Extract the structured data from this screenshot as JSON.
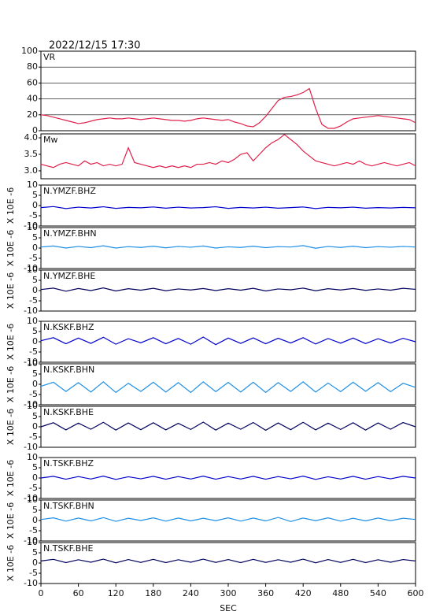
{
  "chart_data": [
    {
      "type": "line",
      "title": "2022/12/15 17:30",
      "grid": true,
      "x": [
        0,
        10,
        20,
        30,
        40,
        50,
        60,
        70,
        80,
        90,
        100,
        110,
        120,
        130,
        140,
        150,
        160,
        170,
        180,
        190,
        200,
        210,
        220,
        230,
        240,
        250,
        260,
        270,
        280,
        290,
        300,
        310,
        320,
        330,
        340,
        350,
        360,
        370,
        380,
        390,
        400,
        410,
        420,
        430,
        440,
        450,
        460,
        470,
        480,
        490,
        500,
        510,
        520,
        530,
        540,
        550,
        560,
        570,
        580,
        590,
        600
      ],
      "xlim": [
        0,
        600
      ],
      "ylim": [
        0,
        100
      ],
      "yticks": [
        0,
        20,
        40,
        60,
        80,
        100
      ],
      "series": [
        {
          "name": "VR",
          "color": "#e0204a",
          "values": [
            20,
            19,
            17,
            15,
            13,
            11,
            9,
            10,
            12,
            14,
            15,
            16,
            15,
            15,
            16,
            15,
            14,
            15,
            16,
            15,
            14,
            13,
            13,
            12,
            13,
            15,
            16,
            15,
            14,
            13,
            14,
            11,
            9,
            6,
            5,
            10,
            18,
            28,
            38,
            42,
            43,
            45,
            48,
            53,
            28,
            8,
            3,
            3,
            6,
            11,
            15,
            16,
            17,
            18,
            19,
            18,
            17,
            16,
            15,
            14,
            10
          ]
        }
      ]
    },
    {
      "type": "line",
      "x": [
        0,
        10,
        20,
        30,
        40,
        50,
        60,
        70,
        80,
        90,
        100,
        110,
        120,
        130,
        140,
        150,
        160,
        170,
        180,
        190,
        200,
        210,
        220,
        230,
        240,
        250,
        260,
        270,
        280,
        290,
        300,
        310,
        320,
        330,
        340,
        350,
        360,
        370,
        380,
        390,
        400,
        410,
        420,
        430,
        440,
        450,
        460,
        470,
        480,
        490,
        500,
        510,
        520,
        530,
        540,
        550,
        560,
        570,
        580,
        590,
        600
      ],
      "xlim": [
        0,
        600
      ],
      "ylim": [
        2.76,
        4.12
      ],
      "yticks": [
        {
          "value": 3,
          "label": "3.0"
        },
        3.5,
        {
          "value": 4,
          "label": "4.0"
        }
      ],
      "series": [
        {
          "name": "Mw",
          "color": "#e0204a",
          "values": [
            3.2,
            3.15,
            3.1,
            3.2,
            3.25,
            3.2,
            3.15,
            3.3,
            3.2,
            3.25,
            3.15,
            3.2,
            3.15,
            3.2,
            3.7,
            3.25,
            3.2,
            3.15,
            3.1,
            3.15,
            3.1,
            3.15,
            3.1,
            3.15,
            3.1,
            3.2,
            3.2,
            3.25,
            3.2,
            3.3,
            3.25,
            3.35,
            3.5,
            3.55,
            3.3,
            3.5,
            3.7,
            3.85,
            3.95,
            4.1,
            3.95,
            3.8,
            3.6,
            3.45,
            3.3,
            3.25,
            3.2,
            3.15,
            3.2,
            3.25,
            3.2,
            3.3,
            3.2,
            3.15,
            3.2,
            3.25,
            3.2,
            3.15,
            3.2,
            3.25,
            3.15
          ]
        }
      ]
    },
    {
      "type": "line",
      "ylabel": "X 10E -6",
      "x": [
        0,
        20,
        40,
        60,
        80,
        100,
        120,
        140,
        160,
        180,
        200,
        220,
        240,
        260,
        280,
        300,
        320,
        340,
        360,
        380,
        400,
        420,
        440,
        460,
        480,
        500,
        520,
        540,
        560,
        580,
        600
      ],
      "xlim": [
        0,
        600
      ],
      "ylim": [
        -10,
        10
      ],
      "yticks": [
        -10,
        -5,
        0,
        5,
        10
      ],
      "series": [
        {
          "name": "N.YMZF.BHZ",
          "color": "#0000cc",
          "values": [
            -1,
            -0.5,
            -1.5,
            -0.8,
            -1.2,
            -0.6,
            -1.4,
            -0.9,
            -1.1,
            -0.7,
            -1.3,
            -0.8,
            -1.2,
            -1,
            -0.6,
            -1.4,
            -0.9,
            -1.2,
            -0.8,
            -1.3,
            -1,
            -0.7,
            -1.5,
            -0.9,
            -1.1,
            -0.8,
            -1.3,
            -1,
            -1.2,
            -0.9,
            -1.1
          ]
        }
      ]
    },
    {
      "type": "line",
      "ylabel": "X 10E -6",
      "x": [
        0,
        20,
        40,
        60,
        80,
        100,
        120,
        140,
        160,
        180,
        200,
        220,
        240,
        260,
        280,
        300,
        320,
        340,
        360,
        380,
        400,
        420,
        440,
        460,
        480,
        500,
        520,
        540,
        560,
        580,
        600
      ],
      "xlim": [
        0,
        600
      ],
      "ylim": [
        -10,
        10
      ],
      "yticks": [
        -10,
        -5,
        0,
        5,
        10
      ],
      "series": [
        {
          "name": "N.YMZF.BHN",
          "color": "#1e8fe6",
          "values": [
            0.5,
            1,
            0,
            0.8,
            0.2,
            1.1,
            0,
            0.7,
            0.3,
            0.9,
            0.1,
            0.8,
            0.4,
            1,
            0,
            0.6,
            0.3,
            0.9,
            0.2,
            0.7,
            0.5,
            1.2,
            -0.1,
            0.8,
            0.3,
            0.9,
            0.2,
            0.7,
            0.4,
            0.8,
            0.5
          ]
        }
      ]
    },
    {
      "type": "line",
      "ylabel": "X 10E -6",
      "x": [
        0,
        20,
        40,
        60,
        80,
        100,
        120,
        140,
        160,
        180,
        200,
        220,
        240,
        260,
        280,
        300,
        320,
        340,
        360,
        380,
        400,
        420,
        440,
        460,
        480,
        500,
        520,
        540,
        560,
        580,
        600
      ],
      "xlim": [
        0,
        600
      ],
      "ylim": [
        -10,
        10
      ],
      "yticks": [
        -10,
        -5,
        0,
        5,
        10
      ],
      "series": [
        {
          "name": "N.YMZF.BHE",
          "color": "#00005e",
          "values": [
            0.5,
            1.2,
            -0.3,
            1,
            0,
            1.3,
            -0.2,
            0.9,
            0.2,
            1.1,
            -0.1,
            0.8,
            0.3,
            1,
            0,
            0.9,
            0.2,
            1.1,
            -0.2,
            0.8,
            0.4,
            1.2,
            -0.1,
            0.9,
            0.3,
            1,
            0.1,
            0.8,
            0.2,
            1.1,
            0.6
          ]
        }
      ]
    },
    {
      "type": "line",
      "ylabel": "X 10E -6",
      "x": [
        0,
        20,
        40,
        60,
        80,
        100,
        120,
        140,
        160,
        180,
        200,
        220,
        240,
        260,
        280,
        300,
        320,
        340,
        360,
        380,
        400,
        420,
        440,
        460,
        480,
        500,
        520,
        540,
        560,
        580,
        600
      ],
      "xlim": [
        0,
        600
      ],
      "ylim": [
        -10,
        10
      ],
      "yticks": [
        -10,
        -5,
        0,
        5,
        10
      ],
      "series": [
        {
          "name": "N.KSKF.BHZ",
          "color": "#0000cc",
          "values": [
            0.5,
            2,
            -1,
            1.8,
            -0.8,
            2.2,
            -1.2,
            1.5,
            -0.5,
            2,
            -1,
            1.6,
            -1.2,
            2.3,
            -1.4,
            1.8,
            -0.8,
            1.9,
            -1,
            1.7,
            -0.6,
            2,
            -1.1,
            1.6,
            -0.7,
            1.8,
            -0.9,
            1.5,
            -0.6,
            1.7,
            0
          ]
        }
      ]
    },
    {
      "type": "line",
      "ylabel": "X 10E -6",
      "x": [
        0,
        20,
        40,
        60,
        80,
        100,
        120,
        140,
        160,
        180,
        200,
        220,
        240,
        260,
        280,
        300,
        320,
        340,
        360,
        380,
        400,
        420,
        440,
        460,
        480,
        500,
        520,
        540,
        560,
        580,
        600
      ],
      "xlim": [
        0,
        600
      ],
      "ylim": [
        -10,
        10
      ],
      "yticks": [
        -10,
        -5,
        0,
        5,
        10
      ],
      "series": [
        {
          "name": "N.KSKF.BHN",
          "color": "#1e8fe6",
          "values": [
            -1,
            1,
            -3.5,
            0.8,
            -3.8,
            1.2,
            -4,
            0.5,
            -3.5,
            1,
            -3.8,
            0.8,
            -4,
            1.2,
            -3.6,
            0.9,
            -3.8,
            1,
            -4,
            0.8,
            -3.5,
            1.2,
            -3.8,
            0.6,
            -3.6,
            1,
            -3.4,
            0.8,
            -3.6,
            0.5,
            -1.5
          ]
        }
      ]
    },
    {
      "type": "line",
      "ylabel": "X 10E -6",
      "x": [
        0,
        20,
        40,
        60,
        80,
        100,
        120,
        140,
        160,
        180,
        200,
        220,
        240,
        260,
        280,
        300,
        320,
        340,
        360,
        380,
        400,
        420,
        440,
        460,
        480,
        500,
        520,
        540,
        560,
        580,
        600
      ],
      "xlim": [
        0,
        600
      ],
      "ylim": [
        -10,
        10
      ],
      "yticks": [
        -10,
        -5,
        0,
        5,
        10
      ],
      "series": [
        {
          "name": "N.KSKF.BHE",
          "color": "#00005e",
          "values": [
            0,
            2,
            -1.5,
            1.8,
            -1.2,
            2.2,
            -1.6,
            1.9,
            -1.4,
            2,
            -1.5,
            1.7,
            -1.3,
            2.3,
            -1.6,
            1.8,
            -1.2,
            2.1,
            -1.7,
            1.9,
            -1.4,
            2.2,
            -1.5,
            1.8,
            -1.3,
            2,
            -1.6,
            1.9,
            -1.2,
            2.1,
            0
          ]
        }
      ]
    },
    {
      "type": "line",
      "ylabel": "X 10E -6",
      "x": [
        0,
        20,
        40,
        60,
        80,
        100,
        120,
        140,
        160,
        180,
        200,
        220,
        240,
        260,
        280,
        300,
        320,
        340,
        360,
        380,
        400,
        420,
        440,
        460,
        480,
        500,
        520,
        540,
        560,
        580,
        600
      ],
      "xlim": [
        0,
        600
      ],
      "ylim": [
        -10,
        10
      ],
      "yticks": [
        -10,
        -5,
        0,
        5,
        10
      ],
      "series": [
        {
          "name": "N.TSKF.BHZ",
          "color": "#0000cc",
          "values": [
            0,
            0.8,
            -0.6,
            0.7,
            -0.5,
            0.9,
            -0.7,
            0.6,
            -0.4,
            0.8,
            -0.6,
            0.7,
            -0.5,
            0.9,
            -0.6,
            0.7,
            -0.5,
            0.8,
            -0.6,
            0.7,
            -0.4,
            0.9,
            -0.7,
            0.6,
            -0.5,
            0.8,
            -0.6,
            0.7,
            -0.4,
            0.8,
            0
          ]
        }
      ]
    },
    {
      "type": "line",
      "ylabel": "X 10E -6",
      "x": [
        0,
        20,
        40,
        60,
        80,
        100,
        120,
        140,
        160,
        180,
        200,
        220,
        240,
        260,
        280,
        300,
        320,
        340,
        360,
        380,
        400,
        420,
        440,
        460,
        480,
        500,
        520,
        540,
        560,
        580,
        600
      ],
      "xlim": [
        0,
        600
      ],
      "ylim": [
        -10,
        10
      ],
      "yticks": [
        -10,
        -5,
        0,
        5,
        10
      ],
      "series": [
        {
          "name": "N.TSKF.BHN",
          "color": "#1e8fe6",
          "values": [
            0.5,
            1.3,
            -0.3,
            1.2,
            -0.2,
            1.4,
            -0.4,
            1.1,
            0,
            1.3,
            -0.3,
            1.2,
            -0.2,
            1.1,
            -0.1,
            1.3,
            -0.3,
            1.2,
            -0.2,
            1.5,
            -0.5,
            1.2,
            -0.1,
            1.3,
            -0.3,
            1.1,
            -0.2,
            1.2,
            -0.1,
            1.1,
            0.5
          ]
        }
      ]
    },
    {
      "type": "line",
      "ylabel": "X 10E -6",
      "xlabel": "SEC",
      "x": [
        0,
        20,
        40,
        60,
        80,
        100,
        120,
        140,
        160,
        180,
        200,
        220,
        240,
        260,
        280,
        300,
        320,
        340,
        360,
        380,
        400,
        420,
        440,
        460,
        480,
        500,
        520,
        540,
        560,
        580,
        600
      ],
      "xlim": [
        0,
        600
      ],
      "ylim": [
        -10,
        10
      ],
      "yticks": [
        -10,
        -5,
        0,
        5,
        10
      ],
      "xticks": [
        0,
        60,
        120,
        180,
        240,
        300,
        360,
        420,
        480,
        540,
        600
      ],
      "series": [
        {
          "name": "N.TSKF.BHE",
          "color": "#00005e",
          "values": [
            1,
            1.8,
            0.2,
            1.6,
            0.4,
            1.9,
            0.1,
            1.7,
            0.3,
            1.8,
            0.2,
            1.6,
            0.4,
            1.9,
            0.3,
            1.7,
            0.2,
            1.8,
            0.3,
            1.6,
            0.4,
            1.9,
            0.1,
            1.7,
            0.3,
            1.8,
            0.2,
            1.6,
            0.4,
            1.7,
            1
          ]
        }
      ]
    }
  ]
}
